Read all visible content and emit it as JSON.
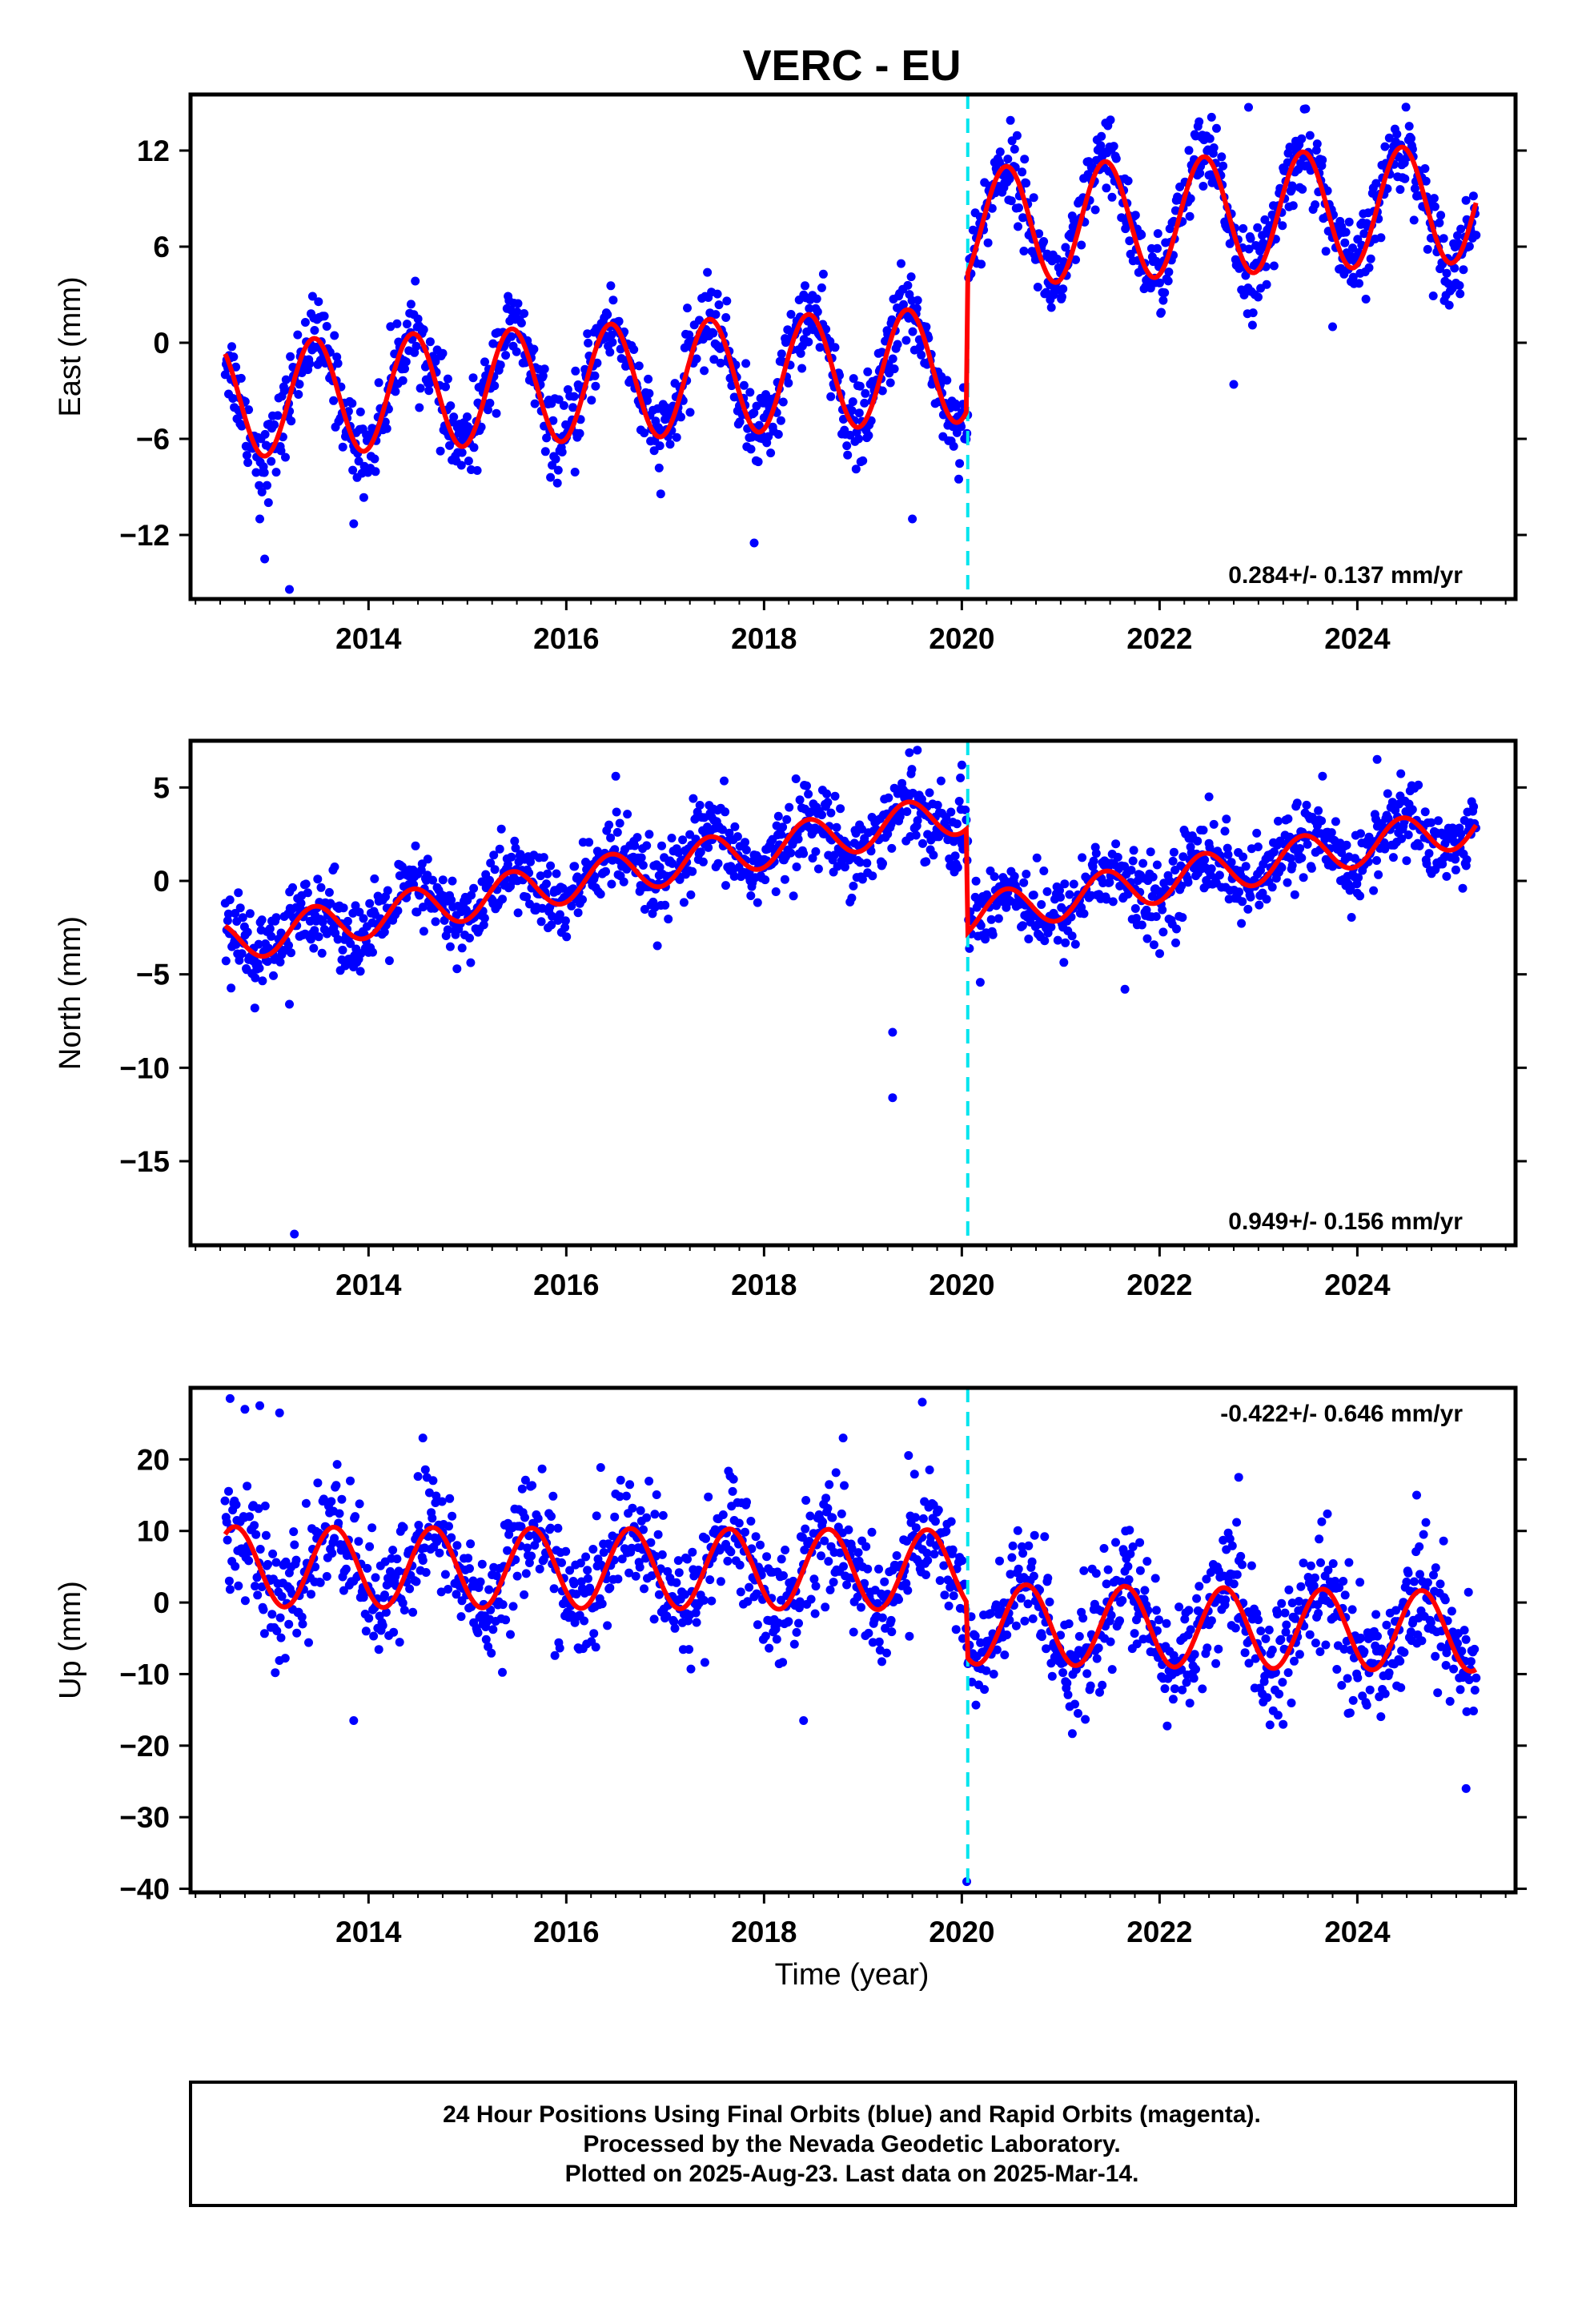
{
  "title": "VERC - EU",
  "colors": {
    "points": "#0000ff",
    "model": "#ff0000",
    "offset_marker": "#00e5ee",
    "frame": "#000000"
  },
  "footer": {
    "lines": [
      "24 Hour Positions Using Final Orbits (blue) and Rapid Orbits (magenta).",
      "Processed by the Nevada Geodetic Laboratory.",
      "Plotted on 2025-Aug-23. Last data on 2025-Mar-14."
    ]
  },
  "chart_data": [
    {
      "type": "scatter",
      "component": "east",
      "ylabel": "East (mm)",
      "xlabel": "",
      "xlim": [
        2012.2,
        2025.6
      ],
      "ylim": [
        -16,
        15.5
      ],
      "yticks": [
        -12,
        -6,
        0,
        6,
        12
      ],
      "ytick_labels": [
        "−12",
        "−6",
        "0",
        "6",
        "12"
      ],
      "xticks": [
        2014,
        2016,
        2018,
        2020,
        2022,
        2024
      ],
      "xtick_labels": [
        "2014",
        "2016",
        "2018",
        "2020",
        "2022",
        "2024"
      ],
      "rate_text": "0.284+/- 0.137 mm/yr",
      "rate_position": "bottom-right",
      "offset_epoch": 2020.06,
      "model": {
        "start": 2012.55,
        "end": 2025.2,
        "segments": [
          {
            "from": 2012.55,
            "to": 2020.06,
            "base": -3.6,
            "trend": 0.3,
            "amp": 3.6,
            "phase_peak": 0.45
          },
          {
            "from": 2020.06,
            "to": 2025.2,
            "base": 7.2,
            "trend": 0.3,
            "amp": 3.7,
            "phase_peak": 0.45
          }
        ]
      },
      "scatter_sigma": 1.25,
      "outliers": [
        {
          "x": 2012.9,
          "y": -11.0
        },
        {
          "x": 2012.95,
          "y": -13.5
        },
        {
          "x": 2013.2,
          "y": -15.4
        },
        {
          "x": 2013.85,
          "y": -11.3
        },
        {
          "x": 2017.9,
          "y": -12.5
        },
        {
          "x": 2019.5,
          "y": -11.0
        },
        {
          "x": 2022.75,
          "y": -2.6
        },
        {
          "x": 2022.9,
          "y": 14.7
        },
        {
          "x": 2023.75,
          "y": 1.0
        }
      ]
    },
    {
      "type": "scatter",
      "component": "north",
      "ylabel": "North (mm)",
      "xlabel": "",
      "xlim": [
        2012.2,
        2025.6
      ],
      "ylim": [
        -19.5,
        7.5
      ],
      "yticks": [
        -15,
        -10,
        -5,
        0,
        5
      ],
      "ytick_labels": [
        "−15",
        "−10",
        "−5",
        "0",
        "5"
      ],
      "xticks": [
        2014,
        2016,
        2018,
        2020,
        2022,
        2024
      ],
      "xtick_labels": [
        "2014",
        "2016",
        "2018",
        "2020",
        "2022",
        "2024"
      ],
      "rate_text": "0.949+/- 0.156 mm/yr",
      "rate_position": "bottom-right",
      "offset_epoch": 2020.06,
      "model": {
        "start": 2012.55,
        "end": 2025.2,
        "segments": [
          {
            "from": 2012.55,
            "to": 2020.06,
            "base": -3.3,
            "trend": 0.93,
            "amp": 1.1,
            "phase_peak": 0.45
          },
          {
            "from": 2020.06,
            "to": 2025.2,
            "base": -1.9,
            "trend": 0.95,
            "amp": 1.1,
            "phase_peak": 0.45
          }
        ]
      },
      "scatter_sigma": 1.05,
      "outliers": [
        {
          "x": 2013.25,
          "y": -18.9
        },
        {
          "x": 2019.3,
          "y": -8.1
        },
        {
          "x": 2019.3,
          "y": -11.6
        },
        {
          "x": 2012.85,
          "y": -6.8
        },
        {
          "x": 2013.2,
          "y": -6.6
        },
        {
          "x": 2021.65,
          "y": -5.8
        },
        {
          "x": 2019.55,
          "y": 7.0
        },
        {
          "x": 2024.2,
          "y": 6.5
        },
        {
          "x": 2016.5,
          "y": 5.6
        },
        {
          "x": 2022.5,
          "y": 4.5
        },
        {
          "x": 2020.0,
          "y": 6.2
        }
      ]
    },
    {
      "type": "scatter",
      "component": "up",
      "ylabel": "Up (mm)",
      "xlabel": "Time (year)",
      "xlim": [
        2012.2,
        2025.6
      ],
      "ylim": [
        -40.5,
        30
      ],
      "yticks": [
        -40,
        -30,
        -20,
        -10,
        0,
        10,
        20
      ],
      "ytick_labels": [
        "−40",
        "−30",
        "−20",
        "−10",
        "0",
        "10",
        "20"
      ],
      "xticks": [
        2014,
        2016,
        2018,
        2020,
        2022,
        2024
      ],
      "xtick_labels": [
        "2014",
        "2016",
        "2018",
        "2020",
        "2022",
        "2024"
      ],
      "rate_text": "-0.422+/- 0.646 mm/yr",
      "rate_position": "top-right",
      "offset_epoch": 2020.06,
      "model": {
        "start": 2012.55,
        "end": 2025.2,
        "segments": [
          {
            "from": 2012.55,
            "to": 2020.06,
            "base": 5.0,
            "trend": -0.06,
            "amp": 5.6,
            "phase_peak": 0.65
          },
          {
            "from": 2020.06,
            "to": 2025.2,
            "base": -3.0,
            "trend": -0.2,
            "amp": 5.6,
            "phase_peak": 0.65
          }
        ]
      },
      "scatter_sigma": 4.2,
      "outliers": [
        {
          "x": 2012.6,
          "y": 28.5
        },
        {
          "x": 2012.75,
          "y": 27.0
        },
        {
          "x": 2012.9,
          "y": 27.5
        },
        {
          "x": 2013.1,
          "y": 26.5
        },
        {
          "x": 2019.6,
          "y": 28.0
        },
        {
          "x": 2014.55,
          "y": 23.0
        },
        {
          "x": 2018.8,
          "y": 23.0
        },
        {
          "x": 2020.05,
          "y": -39.0
        },
        {
          "x": 2025.1,
          "y": -26.0
        },
        {
          "x": 2013.85,
          "y": -16.5
        },
        {
          "x": 2018.4,
          "y": -16.5
        },
        {
          "x": 2022.8,
          "y": 17.5
        },
        {
          "x": 2024.6,
          "y": 15.0
        }
      ]
    }
  ]
}
